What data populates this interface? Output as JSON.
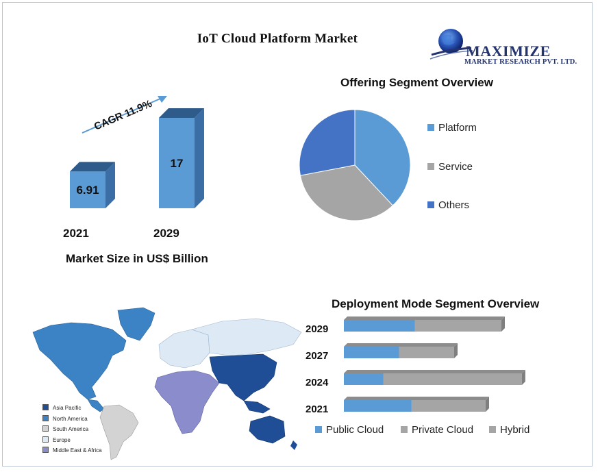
{
  "title": "IoT Cloud Platform Market",
  "logo": {
    "name": "MAXIMIZE",
    "subtitle": "MARKET RESEARCH PVT. LTD.",
    "icon": "globe-icon"
  },
  "colors": {
    "blue_front": "#5b9bd5",
    "blue_side": "#3a6ea5",
    "blue_top": "#2e5b8a",
    "gray": "#a5a5a5",
    "dark_blue": "#4472c4"
  },
  "market_size": {
    "caption": "Market Size in US$ Billion",
    "cagr_label": "CAGR 11.9%"
  },
  "offering": {
    "title": "Offering Segment Overview",
    "legend": [
      "Platform",
      "Service",
      "Others"
    ]
  },
  "deployment": {
    "title": "Deployment Mode  Segment Overview",
    "legend": [
      "Public Cloud",
      "Private Cloud",
      "Hybrid"
    ]
  },
  "map": {
    "legend": [
      "Asia Pacific",
      "North America",
      "South America",
      "Europe",
      "Middle East & Africa"
    ],
    "colors": [
      "#1f4e96",
      "#3c83c5",
      "#d3d3d3",
      "#dde9f4",
      "#8a8ccb"
    ]
  },
  "chart_data": [
    {
      "type": "bar",
      "categories": [
        "2021",
        "2029"
      ],
      "values": [
        6.91,
        17
      ],
      "title": "",
      "xlabel": "Market Size in US$ Billion",
      "ylabel": "",
      "annotation": "CAGR 11.9%",
      "data_labels": [
        "6.91",
        "17"
      ]
    },
    {
      "type": "pie",
      "title": "Offering Segment Overview",
      "categories": [
        "Platform",
        "Service",
        "Others"
      ],
      "values": [
        38,
        34,
        28
      ],
      "legend_position": "right"
    },
    {
      "type": "bar",
      "orientation": "horizontal",
      "stacked": true,
      "title": "Deployment Mode  Segment Overview",
      "categories": [
        "2029",
        "2027",
        "2024",
        "2021"
      ],
      "series": [
        {
          "name": "Public Cloud",
          "values": [
            45,
            35,
            25,
            43
          ]
        },
        {
          "name": "Private Cloud",
          "values": [
            55,
            35,
            88,
            47
          ]
        },
        {
          "name": "Hybrid",
          "values": [
            0,
            0,
            0,
            0
          ]
        }
      ],
      "legend_position": "bottom"
    }
  ]
}
